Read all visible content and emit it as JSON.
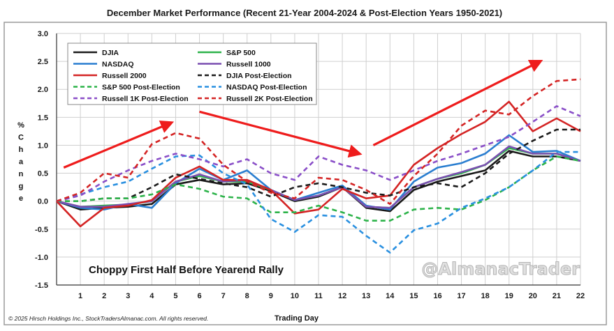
{
  "chart_data": {
    "type": "line",
    "title": "December Market Performance (Recent 21-Year 2004-2024 & Post-Election Years 1950-2021)",
    "xlabel": "Trading Day",
    "ylabel": "% Change",
    "ylabel_chars": [
      "%",
      "C",
      "h",
      "a",
      "n",
      "g",
      "e"
    ],
    "ylim": [
      -1.5,
      3.0
    ],
    "yticks": [
      "3.0",
      "2.5",
      "2.0",
      "1.5",
      "1.0",
      "0.5",
      "0.0",
      "-0.5",
      "-1.0",
      "-1.5"
    ],
    "ytick_values": [
      3.0,
      2.5,
      2.0,
      1.5,
      1.0,
      0.5,
      0.0,
      -0.5,
      -1.0,
      -1.5
    ],
    "x": [
      0,
      1,
      2,
      3,
      4,
      5,
      6,
      7,
      8,
      9,
      10,
      11,
      12,
      13,
      14,
      15,
      16,
      17,
      18,
      19,
      20,
      21,
      22
    ],
    "xticks": [
      "1",
      "2",
      "3",
      "4",
      "5",
      "6",
      "7",
      "8",
      "9",
      "10",
      "11",
      "12",
      "13",
      "14",
      "15",
      "16",
      "17",
      "18",
      "19",
      "20",
      "21",
      "22"
    ],
    "grid": true,
    "legend_position": "top-left",
    "series": [
      {
        "name": "DJIA",
        "color": "#1a1a1a",
        "dash": "solid",
        "values": [
          0,
          -0.15,
          -0.12,
          -0.1,
          -0.05,
          0.3,
          0.38,
          0.3,
          0.32,
          0.18,
          0.0,
          0.08,
          0.25,
          -0.12,
          -0.18,
          0.2,
          0.35,
          0.45,
          0.55,
          0.9,
          0.8,
          0.8,
          0.72
        ]
      },
      {
        "name": "S&P 500",
        "color": "#2db34a",
        "dash": "solid",
        "values": [
          0,
          -0.1,
          -0.08,
          -0.06,
          0.0,
          0.35,
          0.45,
          0.35,
          0.35,
          0.2,
          0.02,
          0.1,
          0.25,
          -0.1,
          -0.12,
          0.25,
          0.4,
          0.5,
          0.65,
          0.95,
          0.85,
          0.85,
          0.72
        ]
      },
      {
        "name": "NASDAQ",
        "color": "#2a7ed0",
        "dash": "solid",
        "values": [
          0,
          -0.12,
          -0.15,
          -0.05,
          -0.12,
          0.32,
          0.58,
          0.38,
          0.55,
          0.2,
          0.02,
          0.15,
          0.28,
          -0.08,
          -0.15,
          0.35,
          0.6,
          0.68,
          0.85,
          1.18,
          0.88,
          0.9,
          0.72
        ]
      },
      {
        "name": "Russell 1000",
        "color": "#7a4fb0",
        "dash": "solid",
        "values": [
          0,
          -0.1,
          -0.1,
          -0.05,
          0.0,
          0.35,
          0.48,
          0.35,
          0.38,
          0.2,
          0.02,
          0.1,
          0.25,
          -0.1,
          -0.12,
          0.25,
          0.4,
          0.52,
          0.65,
          0.98,
          0.85,
          0.85,
          0.72
        ]
      },
      {
        "name": "Russell 2000",
        "color": "#d42424",
        "dash": "solid",
        "values": [
          0,
          -0.45,
          -0.12,
          -0.08,
          0.02,
          0.42,
          0.62,
          0.38,
          0.38,
          0.2,
          -0.22,
          -0.15,
          0.22,
          0.05,
          0.1,
          0.65,
          0.95,
          1.2,
          1.42,
          1.78,
          1.25,
          1.48,
          1.25
        ]
      },
      {
        "name": "DJIA Post-Election",
        "color": "#1a1a1a",
        "dash": "dashed",
        "values": [
          0,
          0.0,
          0.05,
          0.05,
          0.25,
          0.48,
          0.4,
          0.32,
          0.25,
          0.08,
          0.25,
          0.32,
          0.25,
          0.15,
          0.1,
          0.25,
          0.32,
          0.25,
          0.5,
          0.85,
          1.08,
          1.28,
          1.28
        ]
      },
      {
        "name": "S&P 500 Post-Election",
        "color": "#2db34a",
        "dash": "dashed",
        "values": [
          0,
          0.0,
          0.05,
          0.05,
          0.12,
          0.3,
          0.22,
          0.08,
          0.05,
          -0.2,
          -0.2,
          -0.08,
          -0.2,
          -0.35,
          -0.35,
          -0.15,
          -0.12,
          -0.15,
          0.02,
          0.25,
          0.55,
          0.8,
          0.72
        ]
      },
      {
        "name": "NASDAQ Post-Election",
        "color": "#2a90e0",
        "dash": "dashed",
        "values": [
          0,
          0.12,
          0.25,
          0.35,
          0.58,
          0.8,
          0.82,
          0.5,
          0.3,
          -0.32,
          -0.55,
          -0.25,
          -0.28,
          -0.62,
          -0.92,
          -0.52,
          -0.4,
          -0.12,
          0.05,
          0.25,
          0.55,
          0.88,
          0.88
        ]
      },
      {
        "name": "Russell 1K Post-Election",
        "color": "#8a4fc8",
        "dash": "dashed",
        "values": [
          0,
          0.1,
          0.35,
          0.55,
          0.72,
          0.85,
          0.75,
          0.62,
          0.75,
          0.5,
          0.38,
          0.8,
          0.65,
          0.55,
          0.38,
          0.55,
          0.72,
          0.85,
          1.0,
          1.15,
          1.42,
          1.7,
          1.52
        ]
      },
      {
        "name": "Russell 2K Post-Election",
        "color": "#d42424",
        "dash": "dashed",
        "values": [
          0,
          0.15,
          0.5,
          0.42,
          1.02,
          1.22,
          1.12,
          0.65,
          0.35,
          0.15,
          0.05,
          0.42,
          0.38,
          0.2,
          -0.05,
          0.45,
          0.85,
          1.35,
          1.62,
          1.55,
          1.88,
          2.15,
          2.18
        ]
      }
    ],
    "arrows": [
      {
        "from": [
          0.3,
          0.6
        ],
        "to": [
          4.8,
          1.4
        ]
      },
      {
        "from": [
          6.0,
          1.6
        ],
        "to": [
          12.7,
          0.85
        ]
      },
      {
        "from": [
          13.3,
          1.0
        ],
        "to": [
          20.3,
          2.5
        ]
      }
    ],
    "annotation": "Choppy First Half Before Yearend Rally",
    "watermark": "@AlmanacTrader",
    "footer": "© 2025 Hirsch Holdings Inc., StockTradersAlmanac.com. All rights reserved."
  },
  "colors": {
    "arrow": "#ee1c1c",
    "grid": "#cfcfcf",
    "axis": "#333333",
    "border": "#9a9a9a"
  }
}
